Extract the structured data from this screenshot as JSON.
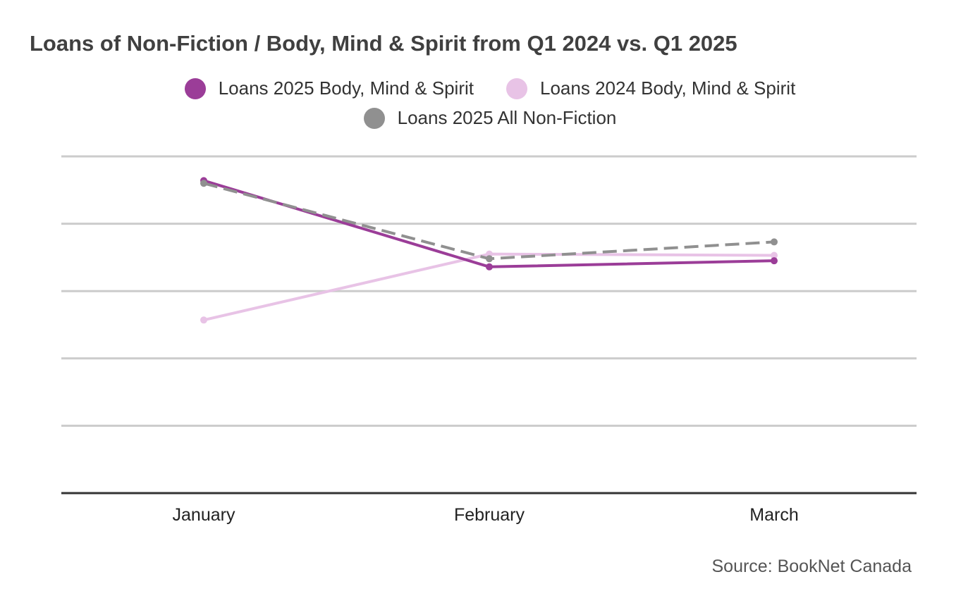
{
  "chart_data": {
    "type": "line",
    "title": "Loans of Non-Fiction / Body, Mind & Spirit from Q1 2024 vs. Q1 2025",
    "categories": [
      "January",
      "February",
      "March"
    ],
    "ylim": [
      0,
      5
    ],
    "grid": true,
    "legend_position": "top",
    "series": [
      {
        "name": "Loans 2025 Body, Mind & Spirit",
        "values": [
          4.64,
          3.36,
          3.45
        ],
        "color": "#9b3d98",
        "dashed": false
      },
      {
        "name": "Loans 2024 Body, Mind & Spirit",
        "values": [
          2.57,
          3.55,
          3.53
        ],
        "color": "#e8c3e6",
        "dashed": false
      },
      {
        "name": "Loans 2025 All Non-Fiction",
        "values": [
          4.6,
          3.48,
          3.73
        ],
        "color": "#909090",
        "dashed": true
      }
    ],
    "source": "Source: BookNet Canada"
  }
}
